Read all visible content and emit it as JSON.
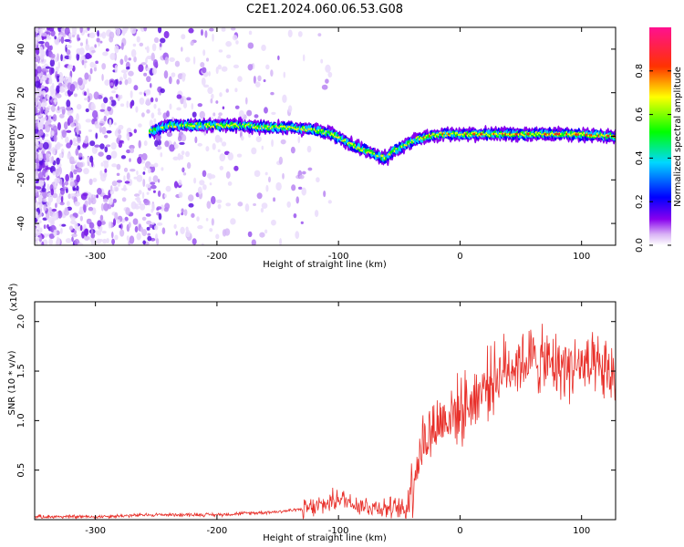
{
  "figure": {
    "title": "C2E1.2024.060.06.53.G08"
  },
  "chart_data": [
    {
      "type": "heatmap",
      "xlabel": "Height of straight line (km)",
      "ylabel": "Frequency (Hz)",
      "xlim": [
        -350,
        128
      ],
      "ylim": [
        -50,
        50
      ],
      "xticks": [
        -300,
        -200,
        -100,
        0,
        100
      ],
      "yticks": [
        -40,
        -20,
        0,
        20,
        40
      ],
      "colorbar": {
        "label": "Normalized spectral amplitude",
        "range": [
          0.0,
          1.0
        ],
        "ticks": [
          "0.0",
          "0.2",
          "0.4",
          "0.6",
          "0.8"
        ]
      },
      "ridge_trace": {
        "x": [
          -255,
          -240,
          -220,
          -200,
          -180,
          -160,
          -140,
          -120,
          -105,
          -95,
          -85,
          -75,
          -68,
          -60,
          -55,
          -45,
          -35,
          -25,
          -15,
          -5,
          10,
          30,
          60,
          90,
          128
        ],
        "y": [
          2,
          5,
          5,
          5,
          5,
          4,
          4,
          3,
          1,
          -2,
          -5,
          -7,
          -9,
          -10,
          -7,
          -4,
          -1,
          0,
          1,
          1,
          1,
          1,
          1,
          1,
          0
        ]
      },
      "grid": false
    },
    {
      "type": "line",
      "xlabel": "Height of straight line (km)",
      "ylabel": "SNR (10 * v/v)",
      "ylabel_exponent": "(x10",
      "exponent_power": "4",
      "exponent_close": ")",
      "xlim": [
        -350,
        128
      ],
      "ylim": [
        0,
        2.2
      ],
      "xticks": [
        -300,
        -200,
        -100,
        0,
        100
      ],
      "yticks": [
        "0.5",
        "1.0",
        "1.5",
        "2.0"
      ],
      "series": [
        {
          "color": "#e8302a",
          "envelope": {
            "x": [
              -350,
              -300,
              -250,
              -200,
              -150,
              -120,
              -110,
              -100,
              -90,
              -80,
              -60,
              -45,
              -40,
              -35,
              -30,
              -20,
              -10,
              0,
              10,
              20,
              30,
              40,
              50,
              60,
              70,
              80,
              90,
              100,
              110,
              120,
              128
            ],
            "y": [
              0.03,
              0.03,
              0.05,
              0.05,
              0.08,
              0.12,
              0.16,
              0.22,
              0.18,
              0.14,
              0.12,
              0.1,
              0.35,
              0.6,
              0.8,
              0.95,
              1.05,
              1.1,
              1.2,
              1.35,
              1.45,
              1.55,
              1.6,
              1.62,
              1.58,
              1.55,
              1.55,
              1.55,
              1.5,
              1.48,
              1.45
            ]
          }
        }
      ],
      "grid": false
    }
  ]
}
